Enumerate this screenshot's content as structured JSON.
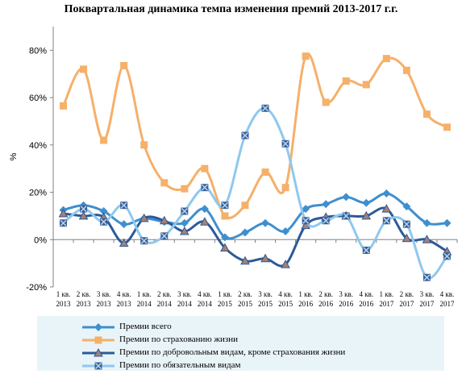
{
  "chart_data": {
    "type": "line",
    "title": "Поквартальная динамика темпа изменения премий  2013-2017 г.г.",
    "ylabel": "%",
    "xlabel": "",
    "ylim": [
      -20,
      90
    ],
    "yticks": [
      -20,
      0,
      20,
      40,
      60,
      80
    ],
    "ytick_labels": [
      "-20%",
      "0%",
      "20%",
      "40%",
      "60%",
      "80%"
    ],
    "grid": false,
    "legend_position": "bottom",
    "categories": [
      [
        "1 кв.",
        "2013"
      ],
      [
        "2 кв.",
        "2013"
      ],
      [
        "3 кв.",
        "2013"
      ],
      [
        "4 кв.",
        "2013"
      ],
      [
        "1 кв.",
        "2014"
      ],
      [
        "2 кв.",
        "2014"
      ],
      [
        "3 кв.",
        "2014"
      ],
      [
        "4 кв.",
        "2014"
      ],
      [
        "1 кв.",
        "2015"
      ],
      [
        "2 кв.",
        "2015"
      ],
      [
        "3 кв.",
        "2015"
      ],
      [
        "4 кв.",
        "2015"
      ],
      [
        "1 кв.",
        "2016"
      ],
      [
        "2 кв.",
        "2016"
      ],
      [
        "3 кв.",
        "2016"
      ],
      [
        "4 кв.",
        "2016"
      ],
      [
        "1 кв.",
        "2017"
      ],
      [
        "2 кв.",
        "2017"
      ],
      [
        "3 кв.",
        "2017"
      ],
      [
        "4 кв.",
        "2017"
      ]
    ],
    "series": [
      {
        "name": "Премии всего",
        "color": "#3f8fcf",
        "marker": "diamond",
        "values": [
          12.5,
          14.5,
          12,
          6.5,
          9,
          7.5,
          7,
          13,
          1,
          3,
          7,
          3.5,
          13,
          15,
          18,
          15.5,
          19.5,
          14,
          7,
          7
        ]
      },
      {
        "name": "Премии по страхованию жизни",
        "color": "#f5b06a",
        "marker": "square",
        "values": [
          56.5,
          72,
          42,
          73.5,
          40,
          24,
          21.5,
          30,
          10,
          14.5,
          28.5,
          22,
          77.5,
          58,
          67,
          65.5,
          76.5,
          71.5,
          53,
          47.5
        ]
      },
      {
        "name": "Премии по добровольным видам, кроме страхования жизни",
        "color": "#2c5a97",
        "marker": "triangle",
        "values": [
          11,
          10,
          9.5,
          -1.5,
          9,
          8,
          3.5,
          7.5,
          -3.5,
          -9,
          -8,
          -10.5,
          6,
          9.5,
          10,
          10,
          13,
          0.5,
          0,
          -5
        ]
      },
      {
        "name": "Премии по обязательным видам",
        "color": "#8fc8ee",
        "marker": "x",
        "values": [
          7,
          13,
          7.5,
          14.5,
          -0.5,
          1.5,
          12,
          22,
          14.5,
          44,
          55.5,
          40.5,
          8,
          8,
          10,
          -4.5,
          8,
          6.5,
          -16,
          -7
        ]
      }
    ]
  }
}
